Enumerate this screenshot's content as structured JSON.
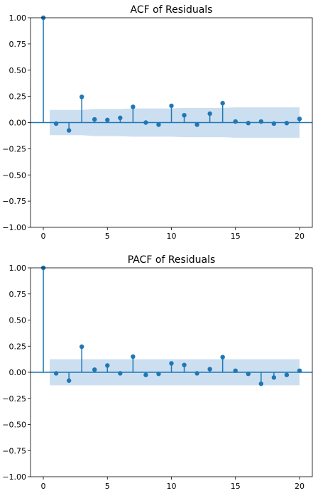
{
  "chart_data": [
    {
      "type": "stem",
      "title": "ACF of Residuals",
      "xlabel": "",
      "ylabel": "",
      "xlim": [
        -1,
        21
      ],
      "ylim": [
        -1.0,
        1.0
      ],
      "x_ticks": [
        "0",
        "5",
        "10",
        "15",
        "20"
      ],
      "y_ticks": [
        "1.00",
        "0.75",
        "0.50",
        "0.25",
        "0.00",
        "−0.25",
        "−0.50",
        "−0.75",
        "−1.00"
      ],
      "grid": false,
      "legend": "none",
      "lags": [
        0,
        1,
        2,
        3,
        4,
        5,
        6,
        7,
        8,
        9,
        10,
        11,
        12,
        13,
        14,
        15,
        16,
        17,
        18,
        19,
        20
      ],
      "values": [
        1.0,
        -0.01,
        -0.075,
        0.245,
        0.03,
        0.025,
        0.045,
        0.15,
        0.0,
        -0.02,
        0.16,
        0.07,
        -0.02,
        0.085,
        0.185,
        0.01,
        -0.005,
        0.01,
        -0.01,
        -0.005,
        0.035
      ],
      "confidence_band": {
        "upper": [
          0.12,
          0.12,
          0.12,
          0.12,
          0.13,
          0.13,
          0.13,
          0.135,
          0.135,
          0.135,
          0.135,
          0.14,
          0.14,
          0.14,
          0.14,
          0.145,
          0.145,
          0.145,
          0.145,
          0.145,
          0.145
        ],
        "lower": [
          -0.12,
          -0.12,
          -0.12,
          -0.12,
          -0.13,
          -0.13,
          -0.13,
          -0.135,
          -0.135,
          -0.135,
          -0.135,
          -0.14,
          -0.14,
          -0.14,
          -0.14,
          -0.145,
          -0.145,
          -0.145,
          -0.145,
          -0.145,
          -0.145
        ]
      }
    },
    {
      "type": "stem",
      "title": "PACF of Residuals",
      "xlabel": "",
      "ylabel": "",
      "xlim": [
        -1,
        21
      ],
      "ylim": [
        -1.0,
        1.0
      ],
      "x_ticks": [
        "0",
        "5",
        "10",
        "15",
        "20"
      ],
      "y_ticks": [
        "1.00",
        "0.75",
        "0.50",
        "0.25",
        "0.00",
        "−0.25",
        "−0.50",
        "−0.75",
        "−1.00"
      ],
      "grid": false,
      "legend": "none",
      "lags": [
        0,
        1,
        2,
        3,
        4,
        5,
        6,
        7,
        8,
        9,
        10,
        11,
        12,
        13,
        14,
        15,
        16,
        17,
        18,
        19,
        20
      ],
      "values": [
        1.0,
        -0.01,
        -0.08,
        0.245,
        0.025,
        0.065,
        -0.01,
        0.15,
        -0.025,
        -0.015,
        0.085,
        0.07,
        -0.01,
        0.03,
        0.145,
        0.015,
        -0.015,
        -0.11,
        -0.05,
        -0.025,
        0.015
      ],
      "confidence_band": {
        "upper": [
          0.125,
          0.125,
          0.125,
          0.125,
          0.125,
          0.125,
          0.125,
          0.125,
          0.125,
          0.125,
          0.125,
          0.125,
          0.125,
          0.125,
          0.125,
          0.125,
          0.125,
          0.125,
          0.125,
          0.125,
          0.125
        ],
        "lower": [
          -0.125,
          -0.125,
          -0.125,
          -0.125,
          -0.125,
          -0.125,
          -0.125,
          -0.125,
          -0.125,
          -0.125,
          -0.125,
          -0.125,
          -0.125,
          -0.125,
          -0.125,
          -0.125,
          -0.125,
          -0.125,
          -0.125,
          -0.125,
          -0.125
        ]
      }
    }
  ],
  "colors": {
    "stem": "#1f77b4",
    "band": "#c6dbef",
    "axis": "#000000",
    "text": "#000000"
  }
}
